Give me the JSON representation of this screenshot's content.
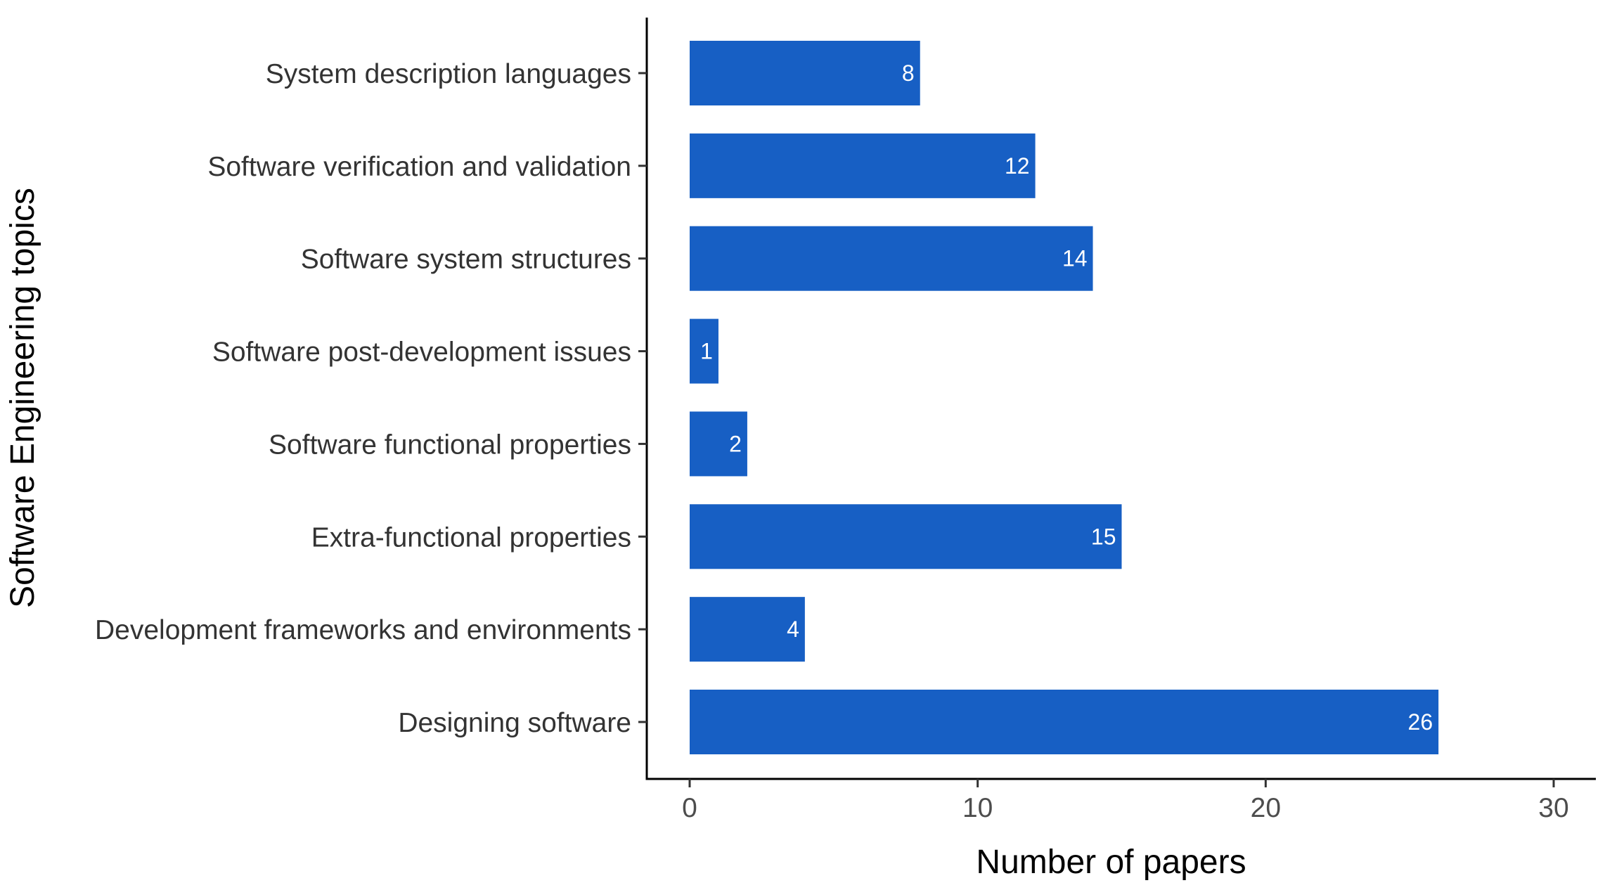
{
  "chart_data": {
    "type": "bar",
    "orientation": "horizontal",
    "categories": [
      "System description languages",
      "Software verification and validation",
      "Software system structures",
      "Software post-development issues",
      "Software functional properties",
      "Extra-functional properties",
      "Development frameworks and environments",
      "Designing software"
    ],
    "values": [
      8,
      12,
      14,
      1,
      2,
      15,
      4,
      26
    ],
    "xlabel": "Number of papers",
    "ylabel": "Software Engineering topics",
    "xlim": [
      0,
      30
    ],
    "xticks": [
      0,
      10,
      20,
      30
    ],
    "grid": false,
    "bar_color": "#175FC4",
    "data_labels": true
  }
}
